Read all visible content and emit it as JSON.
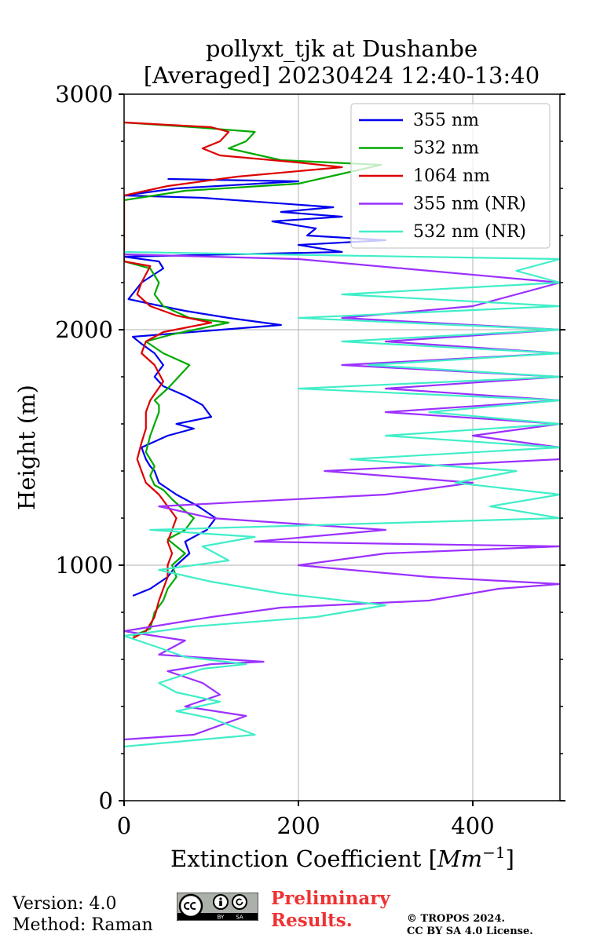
{
  "chart_data": {
    "type": "line",
    "title": "pollyxt_tjk at Dushanbe",
    "subtitle": "[Averaged] 20230424 12:40-13:40",
    "xlabel": "Extinction Coefficient [",
    "xlabel_unit": "Mm",
    "xlabel_exp": "−1",
    "xlabel_close": "]",
    "ylabel": "Height (m)",
    "xlim": [
      0,
      500
    ],
    "ylim": [
      0,
      3000
    ],
    "xticks": [
      0,
      200,
      400
    ],
    "xtick_labels": [
      "0",
      "200",
      "400"
    ],
    "yticks": [
      0,
      1000,
      2000,
      3000
    ],
    "ytick_labels": [
      "0",
      "1000",
      "2000",
      "3000"
    ],
    "grid": true,
    "legend_position": "top-right",
    "series": [
      {
        "name": "355 nm",
        "color": "#0000ee",
        "points": [
          [
            10,
            870
          ],
          [
            30,
            900
          ],
          [
            50,
            950
          ],
          [
            60,
            1000
          ],
          [
            75,
            1050
          ],
          [
            70,
            1100
          ],
          [
            95,
            1150
          ],
          [
            105,
            1200
          ],
          [
            85,
            1250
          ],
          [
            60,
            1300
          ],
          [
            40,
            1350
          ],
          [
            35,
            1400
          ],
          [
            30,
            1420
          ],
          [
            25,
            1450
          ],
          [
            20,
            1500
          ],
          [
            50,
            1550
          ],
          [
            80,
            1580
          ],
          [
            60,
            1600
          ],
          [
            100,
            1630
          ],
          [
            90,
            1680
          ],
          [
            70,
            1720
          ],
          [
            45,
            1760
          ],
          [
            35,
            1800
          ],
          [
            45,
            1850
          ],
          [
            35,
            1900
          ],
          [
            20,
            1940
          ],
          [
            10,
            1970
          ],
          [
            180,
            2020
          ],
          [
            120,
            2050
          ],
          [
            70,
            2080
          ],
          [
            30,
            2110
          ],
          [
            5,
            2130
          ],
          [
            20,
            2200
          ],
          [
            45,
            2260
          ],
          [
            40,
            2290
          ],
          [
            0,
            2310
          ],
          [
            250,
            2330
          ],
          [
            200,
            2360
          ],
          [
            300,
            2380
          ],
          [
            210,
            2400
          ],
          [
            220,
            2430
          ],
          [
            170,
            2460
          ],
          [
            250,
            2480
          ],
          [
            180,
            2500
          ],
          [
            240,
            2520
          ],
          [
            90,
            2560
          ],
          [
            0,
            2570
          ],
          [
            60,
            2600
          ],
          [
            200,
            2630
          ],
          [
            50,
            2640
          ]
        ]
      },
      {
        "name": "532 nm",
        "color": "#00aa00",
        "points": [
          [
            10,
            700
          ],
          [
            30,
            730
          ],
          [
            35,
            800
          ],
          [
            45,
            850
          ],
          [
            50,
            900
          ],
          [
            60,
            950
          ],
          [
            55,
            1000
          ],
          [
            70,
            1050
          ],
          [
            60,
            1080
          ],
          [
            50,
            1110
          ],
          [
            70,
            1150
          ],
          [
            80,
            1200
          ],
          [
            70,
            1230
          ],
          [
            55,
            1280
          ],
          [
            45,
            1320
          ],
          [
            35,
            1340
          ],
          [
            30,
            1380
          ],
          [
            35,
            1420
          ],
          [
            25,
            1480
          ],
          [
            30,
            1550
          ],
          [
            35,
            1600
          ],
          [
            40,
            1650
          ],
          [
            40,
            1680
          ],
          [
            35,
            1700
          ],
          [
            50,
            1750
          ],
          [
            75,
            1850
          ],
          [
            45,
            1900
          ],
          [
            25,
            1950
          ],
          [
            55,
            1980
          ],
          [
            120,
            2030
          ],
          [
            75,
            2050
          ],
          [
            45,
            2100
          ],
          [
            35,
            2150
          ],
          [
            40,
            2200
          ],
          [
            30,
            2260
          ],
          [
            0,
            2290
          ],
          [
            0,
            2550
          ],
          [
            70,
            2590
          ],
          [
            200,
            2620
          ],
          [
            295,
            2700
          ],
          [
            180,
            2720
          ],
          [
            120,
            2770
          ],
          [
            140,
            2800
          ],
          [
            150,
            2840
          ],
          [
            80,
            2860
          ],
          [
            0,
            2880
          ]
        ]
      },
      {
        "name": "1064 nm",
        "color": "#dd0000",
        "points": [
          [
            10,
            690
          ],
          [
            25,
            720
          ],
          [
            35,
            780
          ],
          [
            40,
            850
          ],
          [
            45,
            900
          ],
          [
            50,
            950
          ],
          [
            50,
            1000
          ],
          [
            55,
            1050
          ],
          [
            50,
            1100
          ],
          [
            55,
            1150
          ],
          [
            60,
            1200
          ],
          [
            50,
            1250
          ],
          [
            40,
            1300
          ],
          [
            25,
            1350
          ],
          [
            20,
            1400
          ],
          [
            15,
            1450
          ],
          [
            20,
            1520
          ],
          [
            25,
            1580
          ],
          [
            25,
            1650
          ],
          [
            30,
            1700
          ],
          [
            45,
            1780
          ],
          [
            35,
            1850
          ],
          [
            20,
            1900
          ],
          [
            25,
            1950
          ],
          [
            45,
            1990
          ],
          [
            100,
            2030
          ],
          [
            60,
            2060
          ],
          [
            30,
            2100
          ],
          [
            15,
            2150
          ],
          [
            20,
            2200
          ],
          [
            30,
            2270
          ],
          [
            0,
            2290
          ],
          [
            0,
            2570
          ],
          [
            50,
            2610
          ],
          [
            130,
            2650
          ],
          [
            250,
            2690
          ],
          [
            200,
            2710
          ],
          [
            110,
            2740
          ],
          [
            90,
            2770
          ],
          [
            110,
            2800
          ],
          [
            120,
            2840
          ],
          [
            100,
            2860
          ],
          [
            0,
            2880
          ]
        ]
      },
      {
        "name": "355 nm (NR)",
        "color": "#9b30ff",
        "points": [
          [
            0,
            260
          ],
          [
            80,
            280
          ],
          [
            140,
            360
          ],
          [
            70,
            400
          ],
          [
            110,
            450
          ],
          [
            90,
            500
          ],
          [
            50,
            550
          ],
          [
            100,
            580
          ],
          [
            160,
            590
          ],
          [
            40,
            620
          ],
          [
            70,
            680
          ],
          [
            0,
            720
          ],
          [
            100,
            780
          ],
          [
            180,
            820
          ],
          [
            350,
            850
          ],
          [
            430,
            900
          ],
          [
            500,
            920
          ],
          [
            350,
            950
          ],
          [
            200,
            1000
          ],
          [
            300,
            1050
          ],
          [
            500,
            1080
          ],
          [
            150,
            1100
          ],
          [
            300,
            1150
          ],
          [
            100,
            1200
          ],
          [
            40,
            1250
          ],
          [
            300,
            1300
          ],
          [
            400,
            1350
          ],
          [
            230,
            1400
          ],
          [
            500,
            1450
          ],
          [
            500,
            1500
          ],
          [
            400,
            1550
          ],
          [
            500,
            1600
          ],
          [
            300,
            1650
          ],
          [
            500,
            1700
          ],
          [
            300,
            1750
          ],
          [
            500,
            1800
          ],
          [
            250,
            1850
          ],
          [
            500,
            1900
          ],
          [
            300,
            1950
          ],
          [
            500,
            2000
          ],
          [
            250,
            2050
          ],
          [
            400,
            2100
          ],
          [
            500,
            2200
          ],
          [
            350,
            2250
          ],
          [
            200,
            2300
          ],
          [
            0,
            2320
          ]
        ]
      },
      {
        "name": "532 nm (NR)",
        "color": "#40eec8",
        "points": [
          [
            0,
            230
          ],
          [
            150,
            280
          ],
          [
            100,
            350
          ],
          [
            60,
            380
          ],
          [
            110,
            420
          ],
          [
            60,
            460
          ],
          [
            40,
            500
          ],
          [
            90,
            560
          ],
          [
            140,
            580
          ],
          [
            70,
            610
          ],
          [
            40,
            650
          ],
          [
            0,
            700
          ],
          [
            80,
            740
          ],
          [
            220,
            780
          ],
          [
            300,
            830
          ],
          [
            180,
            880
          ],
          [
            100,
            930
          ],
          [
            40,
            980
          ],
          [
            120,
            1020
          ],
          [
            90,
            1080
          ],
          [
            150,
            1120
          ],
          [
            30,
            1150
          ],
          [
            500,
            1200
          ],
          [
            420,
            1250
          ],
          [
            500,
            1300
          ],
          [
            380,
            1350
          ],
          [
            450,
            1400
          ],
          [
            260,
            1450
          ],
          [
            500,
            1500
          ],
          [
            300,
            1550
          ],
          [
            500,
            1600
          ],
          [
            350,
            1650
          ],
          [
            500,
            1700
          ],
          [
            200,
            1750
          ],
          [
            500,
            1800
          ],
          [
            280,
            1850
          ],
          [
            500,
            1900
          ],
          [
            250,
            1950
          ],
          [
            500,
            2000
          ],
          [
            200,
            2050
          ],
          [
            500,
            2100
          ],
          [
            250,
            2150
          ],
          [
            500,
            2200
          ],
          [
            450,
            2250
          ],
          [
            500,
            2300
          ],
          [
            0,
            2330
          ]
        ]
      }
    ]
  },
  "footer": {
    "version_line": "Version: 4.0",
    "method_line": "Method: Raman",
    "prelim_line1": "Preliminary",
    "prelim_line2": "Results.",
    "copyright_line1": "© TROPOS 2024.",
    "copyright_line2": "CC BY SA 4.0 License.",
    "license_by": "BY",
    "license_sa": "SA"
  }
}
